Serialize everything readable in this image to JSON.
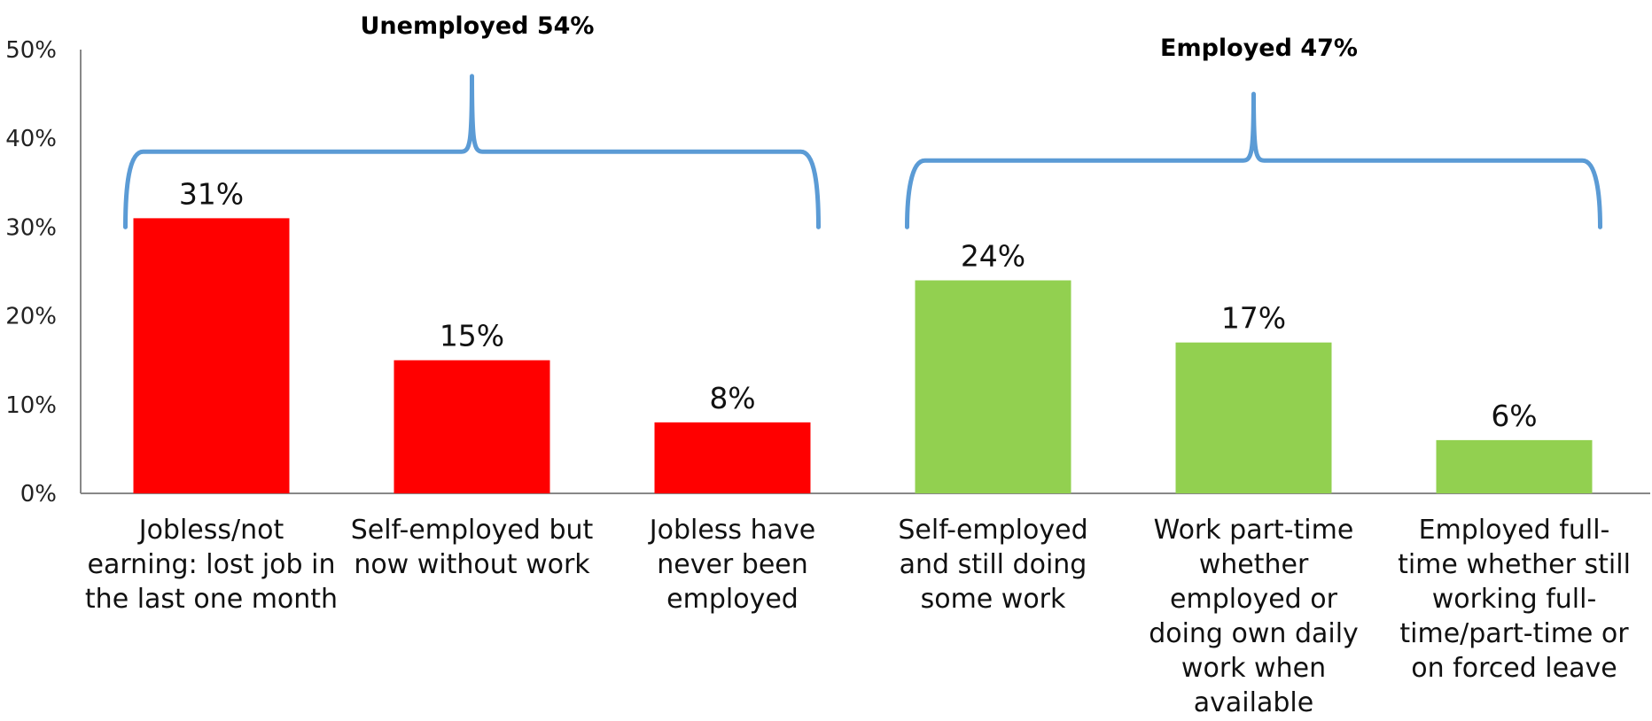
{
  "chart_data": {
    "type": "bar",
    "title": "",
    "xlabel": "",
    "ylabel": "",
    "ylim": [
      0,
      50
    ],
    "yticks": [
      "0%",
      "10%",
      "20%",
      "30%",
      "40%",
      "50%"
    ],
    "grid": false,
    "categories": [
      [
        "Jobless/not",
        "earning: lost job in",
        "the last one month"
      ],
      [
        "Self-employed but",
        "now without work"
      ],
      [
        "Jobless have",
        "never been",
        "employed"
      ],
      [
        "Self-employed",
        "and still doing",
        "some work"
      ],
      [
        "Work part-time",
        "whether",
        "employed or",
        "doing own daily",
        "work when",
        "available"
      ],
      [
        "Employed full-",
        "time whether still",
        "working full-",
        "time/part-time or",
        "on forced leave"
      ]
    ],
    "values": [
      31,
      15,
      8,
      24,
      17,
      6
    ],
    "data_labels": [
      "31%",
      "15%",
      "8%",
      "24%",
      "17%",
      "6%"
    ],
    "bar_colors": [
      "#ff0000",
      "#ff0000",
      "#ff0000",
      "#92d050",
      "#92d050",
      "#92d050"
    ],
    "groups": [
      {
        "label": "Unemployed 54%",
        "members": [
          0,
          1,
          2
        ]
      },
      {
        "label": "Employed 47%",
        "members": [
          3,
          4,
          5
        ]
      }
    ],
    "brace_color": "#5b9bd5",
    "axis_color": "#888888"
  }
}
